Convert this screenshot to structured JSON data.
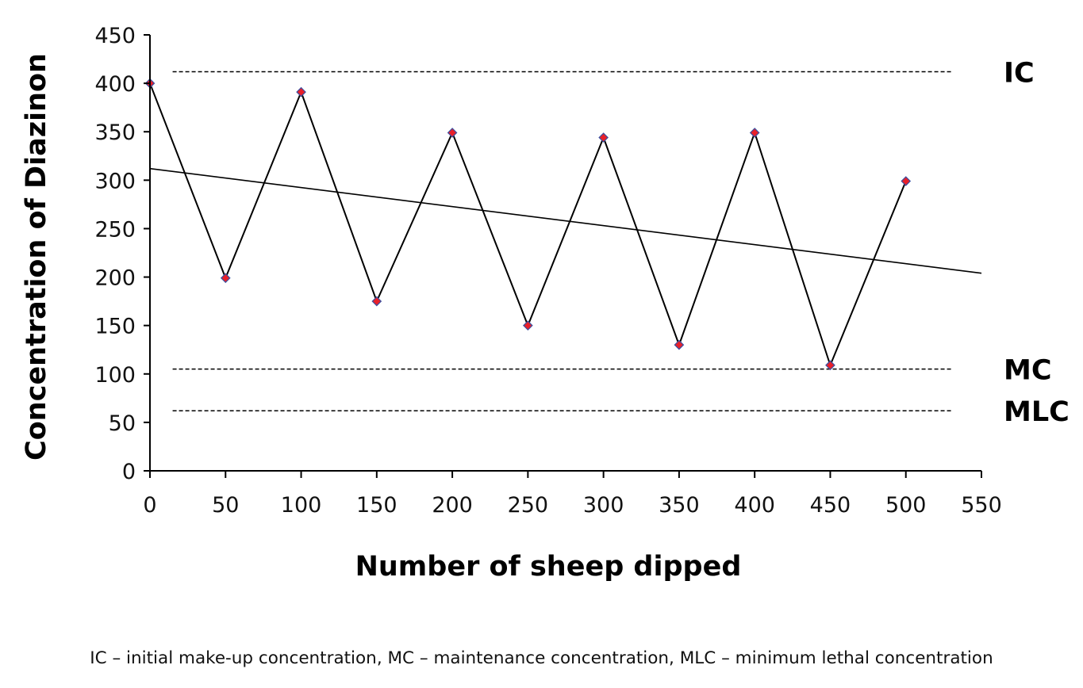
{
  "chart_data": {
    "type": "line",
    "xlabel": "Number of sheep dipped",
    "ylabel": "Concentration of Diazinon",
    "xlim": [
      0,
      550
    ],
    "ylim": [
      0,
      450
    ],
    "x_ticks": [
      0,
      50,
      100,
      150,
      200,
      250,
      300,
      350,
      400,
      450,
      500,
      550
    ],
    "y_ticks": [
      0,
      50,
      100,
      150,
      200,
      250,
      300,
      350,
      400,
      450
    ],
    "grid": false,
    "series": [
      {
        "x": [
          0,
          50,
          100,
          150,
          200,
          250,
          300,
          350,
          400,
          450,
          500
        ],
        "values": [
          400,
          199,
          391,
          175,
          349,
          150,
          344,
          130,
          349,
          109,
          299
        ],
        "line_color": "#000000",
        "marker": "diamond",
        "marker_fill": "#e8202a",
        "marker_edge": "#3b4fa0"
      }
    ],
    "trendline": {
      "x": [
        0,
        550
      ],
      "y": [
        312,
        204
      ],
      "color": "#000000"
    },
    "reference_lines": [
      {
        "label": "IC",
        "y": 412,
        "x_range": [
          15,
          530
        ],
        "style": "dashed"
      },
      {
        "label": "MC",
        "y": 105,
        "x_range": [
          15,
          530
        ],
        "style": "dashed"
      },
      {
        "label": "MLC",
        "y": 62,
        "x_range": [
          15,
          530
        ],
        "style": "dashed"
      }
    ],
    "caption": "IC – initial make-up concentration, MC – maintenance concentration, MLC – minimum lethal concentration"
  }
}
